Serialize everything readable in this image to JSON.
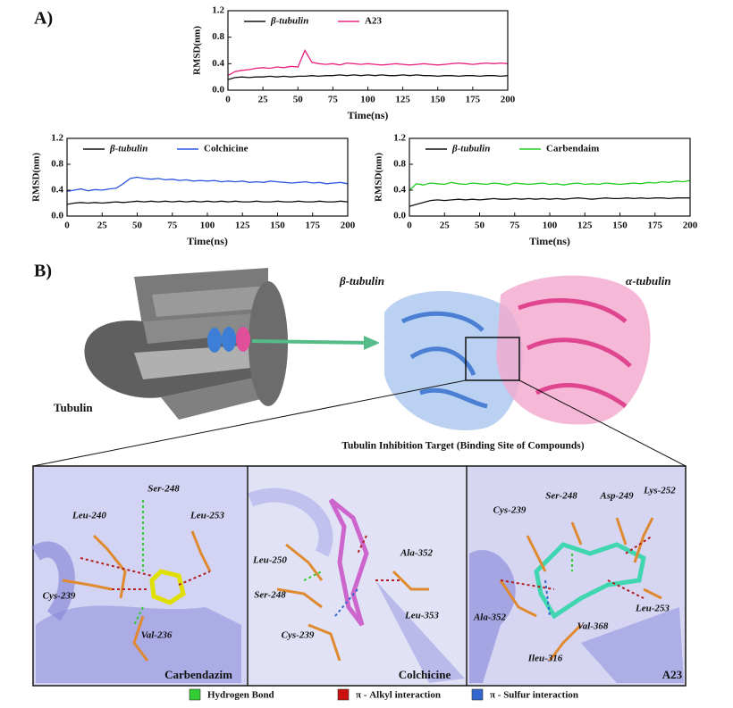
{
  "panel_labels": [
    "A)",
    "B)"
  ],
  "chart_data": [
    {
      "type": "line",
      "xlabel": "Time(ns)",
      "ylabel": "RMSD(nm)",
      "xlim": [
        0,
        200
      ],
      "ylim": [
        0,
        1.2
      ],
      "xticks": [
        0,
        25,
        50,
        75,
        100,
        125,
        150,
        175,
        200
      ],
      "yticks": [
        {
          "value": 0,
          "label": "0.0"
        },
        0.4,
        0.8,
        1.2
      ],
      "legend": "top",
      "x": [
        0,
        5,
        10,
        15,
        20,
        25,
        30,
        35,
        40,
        45,
        50,
        55,
        60,
        65,
        70,
        75,
        80,
        85,
        90,
        95,
        100,
        105,
        110,
        115,
        120,
        125,
        130,
        135,
        140,
        145,
        150,
        155,
        160,
        165,
        170,
        175,
        180,
        185,
        190,
        195,
        200
      ],
      "series": [
        {
          "name": "β-tubulin",
          "color": "#111111",
          "values": [
            0.16,
            0.19,
            0.2,
            0.19,
            0.2,
            0.2,
            0.21,
            0.2,
            0.21,
            0.2,
            0.21,
            0.21,
            0.22,
            0.21,
            0.22,
            0.22,
            0.23,
            0.22,
            0.23,
            0.22,
            0.23,
            0.22,
            0.23,
            0.22,
            0.22,
            0.23,
            0.22,
            0.23,
            0.22,
            0.22,
            0.21,
            0.22,
            0.22,
            0.21,
            0.22,
            0.22,
            0.21,
            0.22,
            0.22,
            0.21,
            0.22
          ]
        },
        {
          "name": "A23",
          "color": "#e8207e",
          "values": [
            0.22,
            0.28,
            0.3,
            0.31,
            0.33,
            0.34,
            0.33,
            0.35,
            0.34,
            0.36,
            0.35,
            0.6,
            0.42,
            0.4,
            0.39,
            0.4,
            0.38,
            0.41,
            0.4,
            0.39,
            0.4,
            0.39,
            0.38,
            0.39,
            0.4,
            0.39,
            0.38,
            0.39,
            0.4,
            0.39,
            0.38,
            0.39,
            0.4,
            0.41,
            0.4,
            0.39,
            0.4,
            0.41,
            0.4,
            0.41,
            0.4
          ]
        }
      ]
    },
    {
      "type": "line",
      "xlabel": "Time(ns)",
      "ylabel": "RMSD(nm)",
      "xlim": [
        0,
        200
      ],
      "ylim": [
        0,
        1.2
      ],
      "xticks": [
        0,
        25,
        50,
        75,
        100,
        125,
        150,
        175,
        200
      ],
      "yticks": [
        {
          "value": 0,
          "label": "0.0"
        },
        0.4,
        0.8,
        1.2
      ],
      "legend": "top",
      "x": [
        0,
        5,
        10,
        15,
        20,
        25,
        30,
        35,
        40,
        45,
        50,
        55,
        60,
        65,
        70,
        75,
        80,
        85,
        90,
        95,
        100,
        105,
        110,
        115,
        120,
        125,
        130,
        135,
        140,
        145,
        150,
        155,
        160,
        165,
        170,
        175,
        180,
        185,
        190,
        195,
        200
      ],
      "series": [
        {
          "name": "β-tubulin",
          "color": "#111111",
          "values": [
            0.18,
            0.2,
            0.21,
            0.2,
            0.21,
            0.2,
            0.21,
            0.22,
            0.21,
            0.22,
            0.23,
            0.22,
            0.23,
            0.22,
            0.23,
            0.22,
            0.23,
            0.22,
            0.23,
            0.22,
            0.23,
            0.22,
            0.23,
            0.22,
            0.23,
            0.22,
            0.22,
            0.23,
            0.22,
            0.22,
            0.23,
            0.22,
            0.22,
            0.23,
            0.22,
            0.22,
            0.23,
            0.22,
            0.22,
            0.23,
            0.22
          ]
        },
        {
          "name": "Colchicine",
          "color": "#2f55e0",
          "values": [
            0.38,
            0.4,
            0.42,
            0.39,
            0.41,
            0.4,
            0.42,
            0.43,
            0.5,
            0.58,
            0.6,
            0.58,
            0.57,
            0.58,
            0.56,
            0.57,
            0.55,
            0.56,
            0.54,
            0.55,
            0.54,
            0.55,
            0.53,
            0.54,
            0.53,
            0.54,
            0.52,
            0.53,
            0.52,
            0.54,
            0.53,
            0.52,
            0.51,
            0.52,
            0.53,
            0.51,
            0.52,
            0.5,
            0.51,
            0.52,
            0.5
          ]
        }
      ]
    },
    {
      "type": "line",
      "xlabel": "Time(ns)",
      "ylabel": "RMSD(nm)",
      "xlim": [
        0,
        200
      ],
      "ylim": [
        0,
        1.2
      ],
      "xticks": [
        0,
        25,
        50,
        75,
        100,
        125,
        150,
        175,
        200
      ],
      "yticks": [
        {
          "value": 0,
          "label": "0.0"
        },
        0.4,
        0.8,
        1.2
      ],
      "legend": "top",
      "x": [
        0,
        5,
        10,
        15,
        20,
        25,
        30,
        35,
        40,
        45,
        50,
        55,
        60,
        65,
        70,
        75,
        80,
        85,
        90,
        95,
        100,
        105,
        110,
        115,
        120,
        125,
        130,
        135,
        140,
        145,
        150,
        155,
        160,
        165,
        170,
        175,
        180,
        185,
        190,
        195,
        200
      ],
      "series": [
        {
          "name": "β-tubulin",
          "color": "#111111",
          "values": [
            0.15,
            0.18,
            0.21,
            0.24,
            0.25,
            0.24,
            0.25,
            0.26,
            0.25,
            0.26,
            0.25,
            0.26,
            0.27,
            0.26,
            0.26,
            0.27,
            0.26,
            0.27,
            0.26,
            0.27,
            0.26,
            0.27,
            0.26,
            0.27,
            0.28,
            0.27,
            0.26,
            0.27,
            0.28,
            0.27,
            0.27,
            0.28,
            0.27,
            0.28,
            0.27,
            0.28,
            0.28,
            0.27,
            0.28,
            0.28,
            0.28
          ]
        },
        {
          "name": "Carbendaim",
          "color": "#22cc22",
          "values": [
            0.4,
            0.5,
            0.48,
            0.51,
            0.5,
            0.49,
            0.52,
            0.5,
            0.49,
            0.51,
            0.5,
            0.49,
            0.51,
            0.5,
            0.48,
            0.51,
            0.5,
            0.49,
            0.5,
            0.51,
            0.49,
            0.5,
            0.48,
            0.5,
            0.51,
            0.49,
            0.5,
            0.49,
            0.51,
            0.5,
            0.49,
            0.5,
            0.51,
            0.5,
            0.52,
            0.51,
            0.53,
            0.52,
            0.54,
            0.53,
            0.55
          ]
        }
      ]
    }
  ],
  "illustration": {
    "tubulin_label": "Tubulin",
    "beta_label": "β-tubulin",
    "alpha_label": "α-tubulin",
    "target_caption": "Tubulin Inhibition Target  (Binding Site of Compounds)",
    "panels": [
      {
        "name": "Carbendazim",
        "residues": [
          "Ser-248",
          "Leu-240",
          "Leu-253",
          "Cys-239",
          "Val-236"
        ]
      },
      {
        "name": "Colchicine",
        "residues": [
          "Leu-250",
          "Ser-248",
          "Cys-239",
          "Ala-352",
          "Leu-353"
        ]
      },
      {
        "name": "A23",
        "residues": [
          "Cys-239",
          "Ser-248",
          "Asp-249",
          "Lys-252",
          "Ala-352",
          "Val-368",
          "Ileu-316",
          "Leu-253"
        ]
      }
    ]
  },
  "interaction_legend": [
    {
      "label": "Hydrogen Bond",
      "color": "#33cc33"
    },
    {
      "label": "π - Alkyl interaction",
      "color": "#cc1111"
    },
    {
      "label": "π - Sulfur interaction",
      "color": "#3366cc"
    }
  ]
}
